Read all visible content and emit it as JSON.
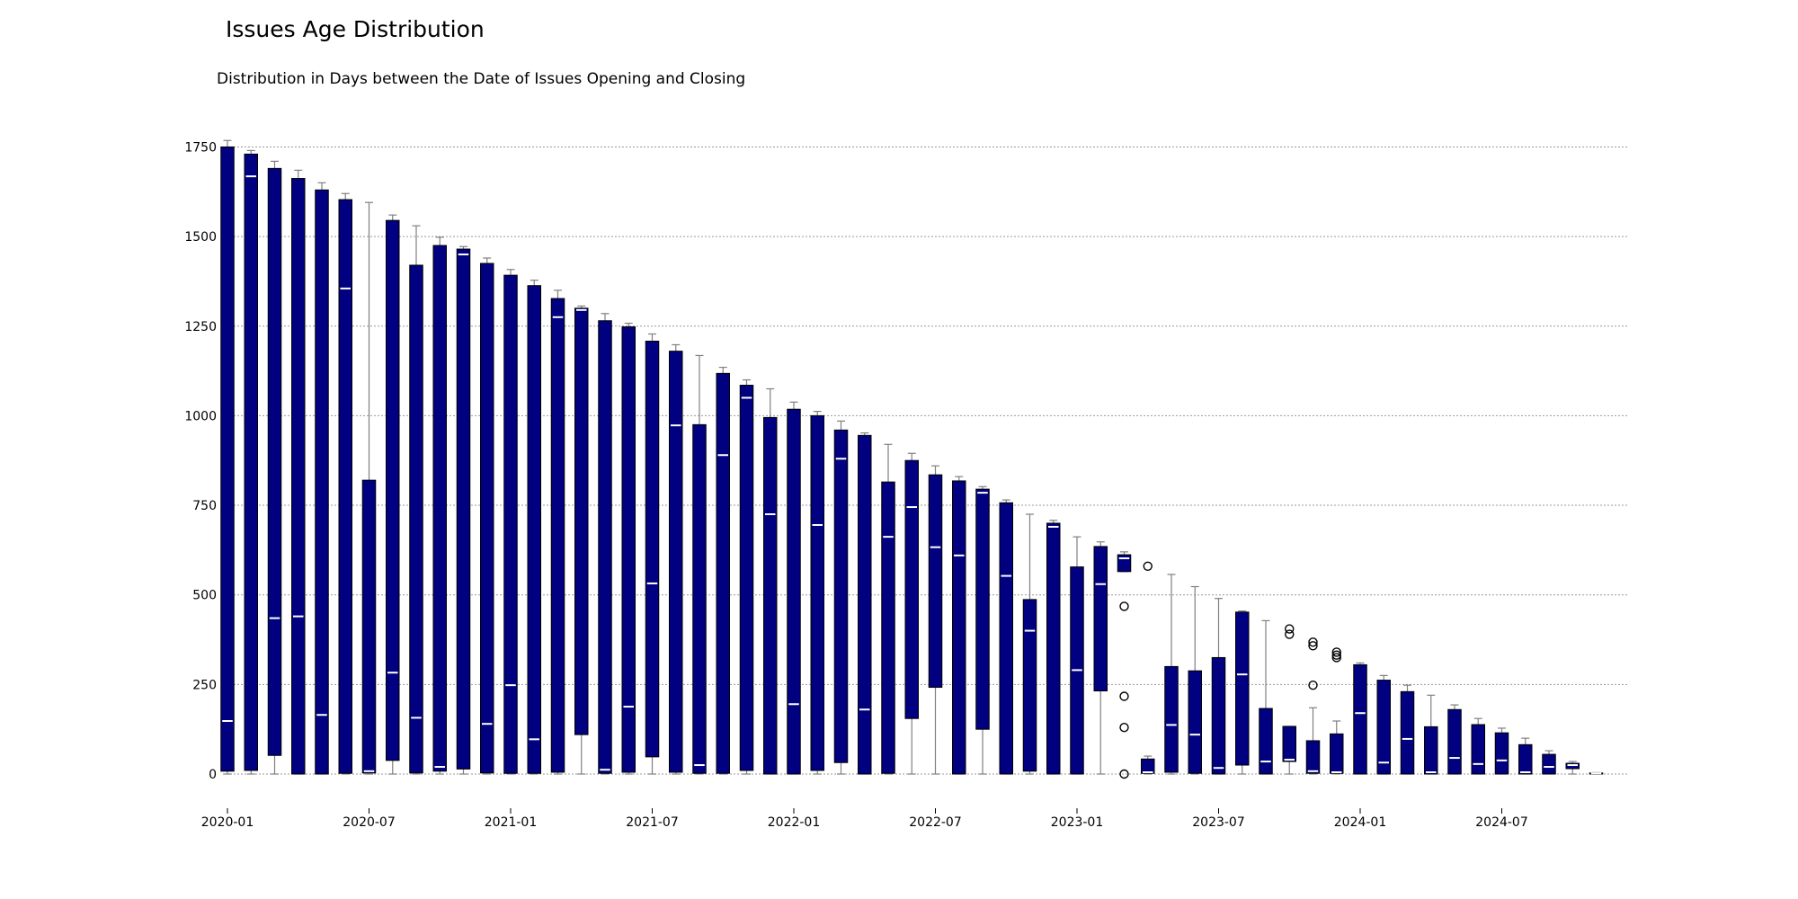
{
  "chart_data": {
    "type": "box",
    "title": "Issues Age Distribution",
    "subtitle": "Distribution in Days between the Date of Issues Opening and Closing",
    "xlabel": "",
    "ylabel": "",
    "ylim": [
      -25,
      1775
    ],
    "yticks": [
      0,
      250,
      500,
      750,
      1000,
      1250,
      1500,
      1750
    ],
    "xticks": [
      "2020-01",
      "2020-07",
      "2021-01",
      "2021-07",
      "2022-01",
      "2022-07",
      "2023-01",
      "2023-07",
      "2024-01",
      "2024-07"
    ],
    "grid": "horizontal",
    "colors": {
      "box_fill": "#000080",
      "box_edge": "#000000",
      "median": "#ffffff",
      "whisker": "#808080",
      "grid": "#999999"
    },
    "boxes": [
      {
        "month": "2020-01",
        "q1": 8,
        "median": 148,
        "q3": 1750,
        "whislo": 0,
        "whishi": 1768,
        "fliers": []
      },
      {
        "month": "2020-02",
        "q1": 10,
        "median": 1668,
        "q3": 1730,
        "whislo": 0,
        "whishi": 1740,
        "fliers": []
      },
      {
        "month": "2020-03",
        "q1": 52,
        "median": 435,
        "q3": 1690,
        "whislo": 0,
        "whishi": 1710,
        "fliers": []
      },
      {
        "month": "2020-04",
        "q1": 0,
        "median": 440,
        "q3": 1662,
        "whislo": 0,
        "whishi": 1685,
        "fliers": []
      },
      {
        "month": "2020-05",
        "q1": 0,
        "median": 165,
        "q3": 1630,
        "whislo": 0,
        "whishi": 1650,
        "fliers": []
      },
      {
        "month": "2020-06",
        "q1": 2,
        "median": 1355,
        "q3": 1603,
        "whislo": 0,
        "whishi": 1620,
        "fliers": []
      },
      {
        "month": "2020-07",
        "q1": 3,
        "median": 8,
        "q3": 820,
        "whislo": 0,
        "whishi": 1595,
        "fliers": []
      },
      {
        "month": "2020-08",
        "q1": 38,
        "median": 283,
        "q3": 1545,
        "whislo": 0,
        "whishi": 1560,
        "fliers": []
      },
      {
        "month": "2020-09",
        "q1": 3,
        "median": 157,
        "q3": 1420,
        "whislo": 0,
        "whishi": 1530,
        "fliers": []
      },
      {
        "month": "2020-10",
        "q1": 8,
        "median": 20,
        "q3": 1475,
        "whislo": 0,
        "whishi": 1498,
        "fliers": []
      },
      {
        "month": "2020-11",
        "q1": 14,
        "median": 1450,
        "q3": 1465,
        "whislo": 0,
        "whishi": 1472,
        "fliers": []
      },
      {
        "month": "2020-12",
        "q1": 3,
        "median": 140,
        "q3": 1425,
        "whislo": 0,
        "whishi": 1440,
        "fliers": []
      },
      {
        "month": "2021-01",
        "q1": 2,
        "median": 248,
        "q3": 1392,
        "whislo": 0,
        "whishi": 1408,
        "fliers": []
      },
      {
        "month": "2021-02",
        "q1": 2,
        "median": 97,
        "q3": 1363,
        "whislo": 0,
        "whishi": 1378,
        "fliers": []
      },
      {
        "month": "2021-03",
        "q1": 5,
        "median": 1275,
        "q3": 1327,
        "whislo": 0,
        "whishi": 1350,
        "fliers": []
      },
      {
        "month": "2021-04",
        "q1": 110,
        "median": 1295,
        "q3": 1300,
        "whislo": 0,
        "whishi": 1306,
        "fliers": []
      },
      {
        "month": "2021-05",
        "q1": 2,
        "median": 12,
        "q3": 1265,
        "whislo": 0,
        "whishi": 1285,
        "fliers": []
      },
      {
        "month": "2021-06",
        "q1": 5,
        "median": 188,
        "q3": 1248,
        "whislo": 0,
        "whishi": 1258,
        "fliers": []
      },
      {
        "month": "2021-07",
        "q1": 48,
        "median": 532,
        "q3": 1208,
        "whislo": 0,
        "whishi": 1228,
        "fliers": []
      },
      {
        "month": "2021-08",
        "q1": 5,
        "median": 973,
        "q3": 1180,
        "whislo": 0,
        "whishi": 1198,
        "fliers": []
      },
      {
        "month": "2021-09",
        "q1": 2,
        "median": 25,
        "q3": 975,
        "whislo": 0,
        "whishi": 1168,
        "fliers": []
      },
      {
        "month": "2021-10",
        "q1": 2,
        "median": 890,
        "q3": 1118,
        "whislo": 0,
        "whishi": 1135,
        "fliers": []
      },
      {
        "month": "2021-11",
        "q1": 10,
        "median": 1050,
        "q3": 1085,
        "whislo": 0,
        "whishi": 1100,
        "fliers": []
      },
      {
        "month": "2021-12",
        "q1": 0,
        "median": 725,
        "q3": 995,
        "whislo": 0,
        "whishi": 1075,
        "fliers": []
      },
      {
        "month": "2022-01",
        "q1": 0,
        "median": 195,
        "q3": 1018,
        "whislo": 0,
        "whishi": 1038,
        "fliers": []
      },
      {
        "month": "2022-02",
        "q1": 10,
        "median": 695,
        "q3": 1000,
        "whislo": 0,
        "whishi": 1012,
        "fliers": []
      },
      {
        "month": "2022-03",
        "q1": 32,
        "median": 880,
        "q3": 960,
        "whislo": 0,
        "whishi": 985,
        "fliers": []
      },
      {
        "month": "2022-04",
        "q1": 0,
        "median": 180,
        "q3": 945,
        "whislo": 0,
        "whishi": 952,
        "fliers": []
      },
      {
        "month": "2022-05",
        "q1": 2,
        "median": 662,
        "q3": 815,
        "whislo": 0,
        "whishi": 920,
        "fliers": []
      },
      {
        "month": "2022-06",
        "q1": 155,
        "median": 745,
        "q3": 875,
        "whislo": 0,
        "whishi": 895,
        "fliers": []
      },
      {
        "month": "2022-07",
        "q1": 242,
        "median": 633,
        "q3": 835,
        "whislo": 0,
        "whishi": 860,
        "fliers": []
      },
      {
        "month": "2022-08",
        "q1": 0,
        "median": 610,
        "q3": 818,
        "whislo": 0,
        "whishi": 830,
        "fliers": []
      },
      {
        "month": "2022-09",
        "q1": 125,
        "median": 785,
        "q3": 795,
        "whislo": 0,
        "whishi": 802,
        "fliers": []
      },
      {
        "month": "2022-10",
        "q1": 0,
        "median": 553,
        "q3": 757,
        "whislo": 0,
        "whishi": 765,
        "fliers": []
      },
      {
        "month": "2022-11",
        "q1": 8,
        "median": 400,
        "q3": 487,
        "whislo": 0,
        "whishi": 725,
        "fliers": []
      },
      {
        "month": "2022-12",
        "q1": 0,
        "median": 690,
        "q3": 700,
        "whislo": 0,
        "whishi": 708,
        "fliers": []
      },
      {
        "month": "2023-01",
        "q1": 0,
        "median": 290,
        "q3": 578,
        "whislo": 0,
        "whishi": 662,
        "fliers": []
      },
      {
        "month": "2023-02",
        "q1": 232,
        "median": 530,
        "q3": 635,
        "whislo": 0,
        "whishi": 648,
        "fliers": []
      },
      {
        "month": "2023-03",
        "q1": 565,
        "median": 602,
        "q3": 612,
        "whislo": 565,
        "whishi": 620,
        "fliers": [
          468,
          217,
          130,
          0
        ]
      },
      {
        "month": "2023-04",
        "q1": 2,
        "median": 5,
        "q3": 42,
        "whislo": 0,
        "whishi": 50,
        "fliers": [
          580
        ]
      },
      {
        "month": "2023-05",
        "q1": 5,
        "median": 137,
        "q3": 300,
        "whislo": 0,
        "whishi": 557,
        "fliers": []
      },
      {
        "month": "2023-06",
        "q1": 2,
        "median": 110,
        "q3": 288,
        "whislo": 0,
        "whishi": 523,
        "fliers": []
      },
      {
        "month": "2023-07",
        "q1": 0,
        "median": 17,
        "q3": 325,
        "whislo": 0,
        "whishi": 490,
        "fliers": []
      },
      {
        "month": "2023-08",
        "q1": 25,
        "median": 278,
        "q3": 452,
        "whislo": 0,
        "whishi": 455,
        "fliers": []
      },
      {
        "month": "2023-09",
        "q1": 0,
        "median": 35,
        "q3": 183,
        "whislo": 0,
        "whishi": 428,
        "fliers": []
      },
      {
        "month": "2023-10",
        "q1": 35,
        "median": 40,
        "q3": 133,
        "whislo": 0,
        "whishi": 133,
        "fliers": [
          405,
          390
        ]
      },
      {
        "month": "2023-11",
        "q1": 2,
        "median": 8,
        "q3": 93,
        "whislo": 0,
        "whishi": 185,
        "fliers": [
          368,
          358,
          248
        ]
      },
      {
        "month": "2023-12",
        "q1": 2,
        "median": 5,
        "q3": 112,
        "whislo": 0,
        "whishi": 148,
        "fliers": [
          340,
          332,
          325
        ]
      },
      {
        "month": "2024-01",
        "q1": 0,
        "median": 170,
        "q3": 305,
        "whislo": 0,
        "whishi": 310,
        "fliers": []
      },
      {
        "month": "2024-02",
        "q1": 0,
        "median": 32,
        "q3": 262,
        "whislo": 0,
        "whishi": 275,
        "fliers": []
      },
      {
        "month": "2024-03",
        "q1": 0,
        "median": 98,
        "q3": 230,
        "whislo": 0,
        "whishi": 248,
        "fliers": []
      },
      {
        "month": "2024-04",
        "q1": 0,
        "median": 5,
        "q3": 132,
        "whislo": 0,
        "whishi": 220,
        "fliers": []
      },
      {
        "month": "2024-05",
        "q1": 0,
        "median": 45,
        "q3": 180,
        "whislo": 0,
        "whishi": 193,
        "fliers": []
      },
      {
        "month": "2024-06",
        "q1": 0,
        "median": 28,
        "q3": 138,
        "whislo": 0,
        "whishi": 155,
        "fliers": []
      },
      {
        "month": "2024-07",
        "q1": 0,
        "median": 38,
        "q3": 115,
        "whislo": 0,
        "whishi": 128,
        "fliers": []
      },
      {
        "month": "2024-08",
        "q1": 0,
        "median": 5,
        "q3": 82,
        "whislo": 0,
        "whishi": 100,
        "fliers": []
      },
      {
        "month": "2024-09",
        "q1": 0,
        "median": 20,
        "q3": 55,
        "whislo": 0,
        "whishi": 65,
        "fliers": []
      },
      {
        "month": "2024-10",
        "q1": 15,
        "median": 25,
        "q3": 30,
        "whislo": 0,
        "whishi": 35,
        "fliers": []
      },
      {
        "month": "2024-11",
        "q1": 0,
        "median": 2,
        "q3": 3,
        "whislo": 0,
        "whishi": 4,
        "fliers": []
      }
    ]
  }
}
